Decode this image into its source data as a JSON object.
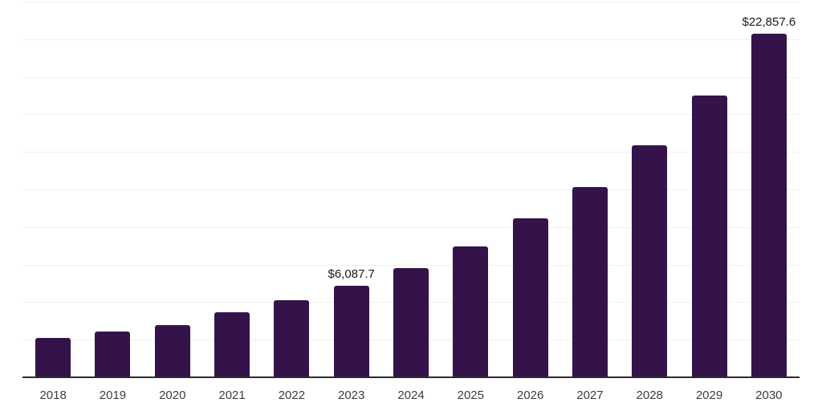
{
  "chart_data": {
    "type": "bar",
    "title": "",
    "xlabel": "",
    "ylabel": "",
    "categories": [
      "2018",
      "2019",
      "2020",
      "2021",
      "2022",
      "2023",
      "2024",
      "2025",
      "2026",
      "2027",
      "2028",
      "2029",
      "2030"
    ],
    "values": [
      2630,
      3030,
      3470,
      4340,
      5130,
      6087.7,
      7270,
      8720,
      10600,
      12680,
      15420,
      18730,
      22857.6
    ],
    "value_labels": {
      "2023": "$6,087.7",
      "2030": "$22,857.6"
    },
    "ylim": [
      0,
      25000
    ],
    "gridline_step": 2500,
    "grid": "horizontal",
    "legend": "none",
    "y_axis_ticks_visible": false,
    "bar_color": "#34134B",
    "axis_color": "#2B2B2B",
    "gridline_color": "#F0F0F0",
    "value_label_color": "#1A1A1A",
    "tick_label_color": "#3D3D3D"
  }
}
